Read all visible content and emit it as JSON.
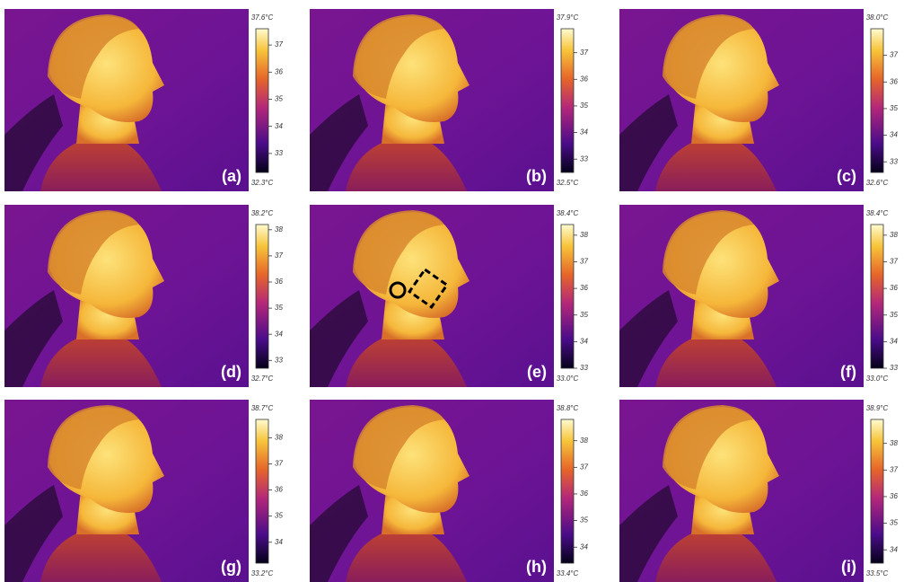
{
  "panels": [
    {
      "label": "(a)",
      "max": "37.6°C",
      "min": "32.3°C",
      "ticks": [
        33,
        34,
        35,
        36,
        37
      ]
    },
    {
      "label": "(b)",
      "max": "37.9°C",
      "min": "32.5°C",
      "ticks": [
        33,
        34,
        35,
        36,
        37
      ]
    },
    {
      "label": "(c)",
      "max": "38.0°C",
      "min": "32.6°C",
      "ticks": [
        33,
        34,
        35,
        36,
        37
      ]
    },
    {
      "label": "(d)",
      "max": "38.2°C",
      "min": "32.7°C",
      "ticks": [
        33,
        34,
        35,
        36,
        37,
        38
      ]
    },
    {
      "label": "(e)",
      "max": "38.4°C",
      "min": "33.0°C",
      "ticks": [
        33,
        34,
        35,
        36,
        37,
        38
      ]
    },
    {
      "label": "(f)",
      "max": "38.4°C",
      "min": "33.0°C",
      "ticks": [
        33,
        34,
        35,
        36,
        37,
        38
      ]
    },
    {
      "label": "(g)",
      "max": "38.7°C",
      "min": "33.2°C",
      "ticks": [
        34,
        35,
        36,
        37,
        38
      ]
    },
    {
      "label": "(h)",
      "max": "38.8°C",
      "min": "33.4°C",
      "ticks": [
        34,
        35,
        36,
        37,
        38
      ]
    },
    {
      "label": "(i)",
      "max": "38.9°C",
      "min": "33.5°C",
      "ticks": [
        34,
        35,
        36,
        37,
        38
      ]
    }
  ]
}
